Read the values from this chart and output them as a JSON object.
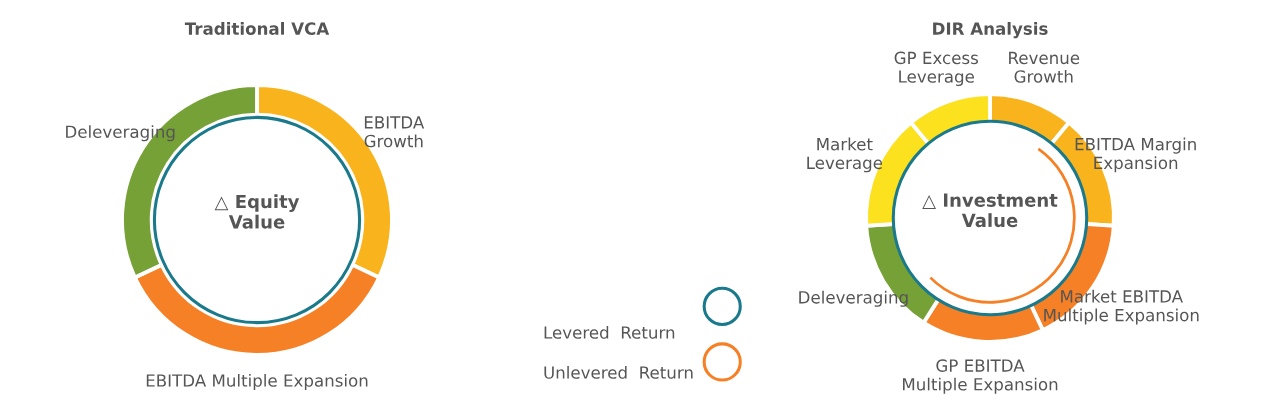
{
  "chart_data": [
    {
      "type": "donut",
      "title": "Traditional VCA",
      "categories": [
        "EBITDA\nGrowth",
        "EBITDA Multiple Expansion",
        "Deleveraging"
      ],
      "values": [
        32,
        36,
        32
      ],
      "colors": [
        "#f9b31c",
        "#f58025",
        "#76a136"
      ],
      "annotations": [
        "△ Equity\nValue"
      ]
    },
    {
      "type": "donut",
      "title": "DIR Analysis",
      "categories": [
        "Revenue\nGrowth",
        "EBITDA Margin\nExpansion",
        "Market EBITDA\nMultiple Expansion",
        "GP EBITDA\nMultiple Expansion",
        "Deleveraging",
        "Market\nLeverage",
        "GP Excess\nLeverage"
      ],
      "values": [
        11,
        15,
        17,
        16,
        15,
        15,
        11
      ],
      "colors": [
        "#f9b31c",
        "#f9b31c",
        "#f58025",
        "#f58025",
        "#76a136",
        "#fbe11e",
        "#fbe11e"
      ],
      "annotations": [
        "△ Investment\nValue",
        "Levered  Return",
        "Unlevered  Return"
      ]
    }
  ]
}
